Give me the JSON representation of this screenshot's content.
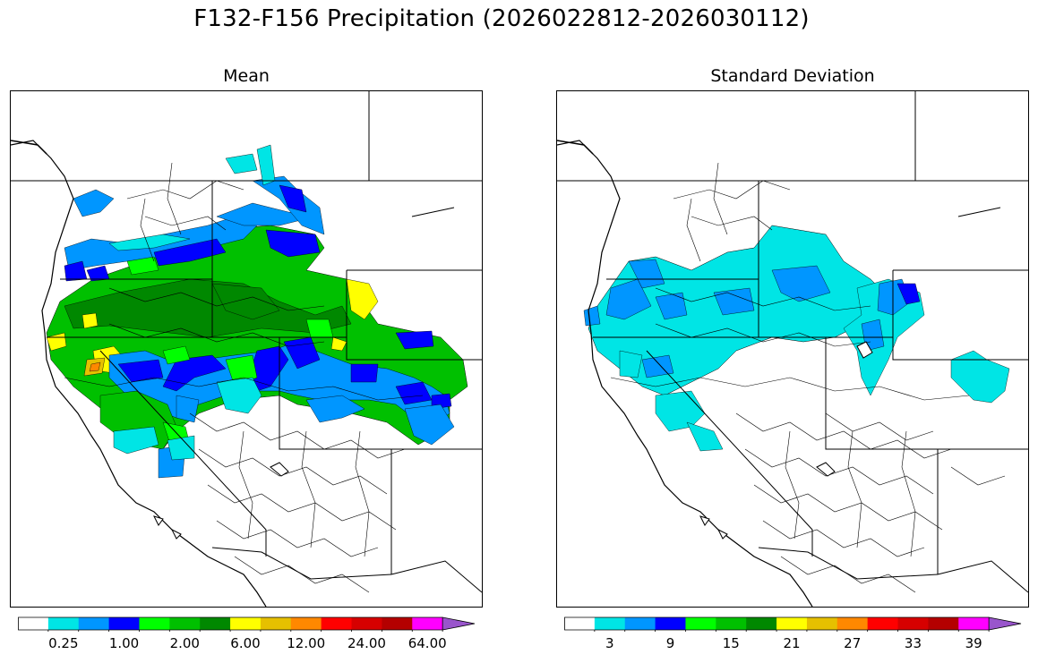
{
  "title": "F132-F156 Precipitation (2026022812-2026030112)",
  "panels": [
    {
      "id": "mean",
      "title": "Mean",
      "colorbar": {
        "colors": [
          "#ffffff",
          "#00e5e5",
          "#0096ff",
          "#0000ff",
          "#00ff00",
          "#00c000",
          "#008800",
          "#ffff00",
          "#e6c000",
          "#ff8800",
          "#ff0000",
          "#d60000",
          "#b40000",
          "#ff00ff",
          "#9955cc"
        ],
        "extend": "max",
        "tick_labels": [
          "0.25",
          "1.00",
          "2.00",
          "6.00",
          "12.00",
          "24.00",
          "64.00"
        ],
        "label_bins": [
          1,
          3,
          5,
          7,
          9,
          11,
          13
        ]
      }
    },
    {
      "id": "std",
      "title": "Standard Deviation",
      "colorbar": {
        "colors": [
          "#ffffff",
          "#00e5e5",
          "#0096ff",
          "#0000ff",
          "#00ff00",
          "#00c000",
          "#008800",
          "#ffff00",
          "#e6c000",
          "#ff8800",
          "#ff0000",
          "#d60000",
          "#b40000",
          "#ff00ff",
          "#9955cc"
        ],
        "extend": "max",
        "tick_labels": [
          "3",
          "9",
          "15",
          "21",
          "27",
          "33",
          "39"
        ],
        "label_bins": [
          1,
          3,
          5,
          7,
          9,
          11,
          13
        ]
      }
    }
  ]
}
